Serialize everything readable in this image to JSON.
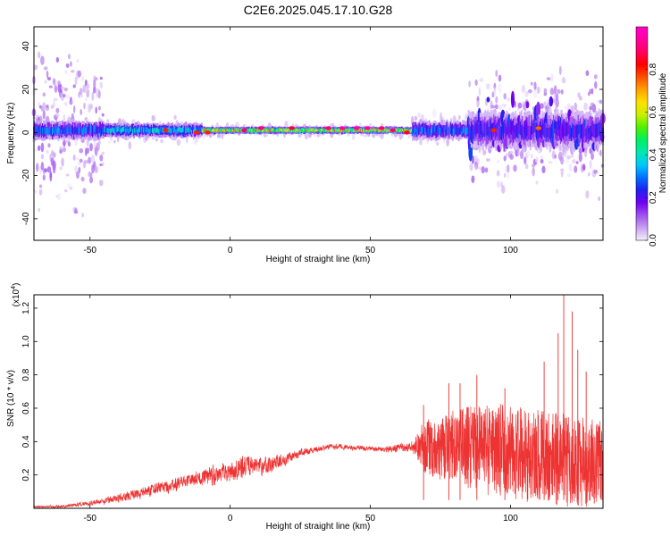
{
  "page": {
    "title": "C2E6.2025.045.17.10.G28"
  },
  "colorbar": {
    "label": "Normalized spectral amplitude",
    "ticks": [
      "0.0",
      "0.2",
      "0.4",
      "0.6",
      "0.8"
    ],
    "tick_values": [
      0.0,
      0.2,
      0.4,
      0.6,
      0.8
    ],
    "range": [
      0.0,
      1.0
    ],
    "colormap": [
      "#f4f0ff",
      "#c8a0f0",
      "#a050f0",
      "#7000f0",
      "#2020f0",
      "#0070ff",
      "#00c8ff",
      "#00e8b0",
      "#00f060",
      "#50f000",
      "#c8f000",
      "#ffe000",
      "#ffa000",
      "#ff5000",
      "#ff0000",
      "#ff0060",
      "#ff00a0",
      "#ff00c8"
    ]
  },
  "chart_data": [
    {
      "type": "heatmap",
      "title": "C2E6.2025.045.17.10.G28",
      "xlabel": "Height of straight line (km)",
      "ylabel": "Frequency (Hz)",
      "xlim": [
        -70,
        133
      ],
      "ylim": [
        -50,
        49
      ],
      "xticks": [
        -50,
        0,
        50,
        100
      ],
      "xtick_labels": [
        "-50",
        "0",
        "50",
        "100"
      ],
      "yticks": [
        -40,
        -20,
        0,
        20,
        40
      ],
      "ytick_labels": [
        "-40",
        "-20",
        "0",
        "20",
        "40"
      ],
      "band": {
        "center_hz": 1,
        "segments": [
          {
            "x_range": [
              -70,
              -45
            ],
            "halfwidth_hz": 4,
            "peak_amplitude": 0.4,
            "scatter_halfwidth_hz": 48
          },
          {
            "x_range": [
              -45,
              -10
            ],
            "halfwidth_hz": 3,
            "peak_amplitude": 0.5,
            "scatter_halfwidth_hz": 8
          },
          {
            "x_range": [
              -10,
              65
            ],
            "halfwidth_hz": 1.5,
            "peak_amplitude": 0.9,
            "scatter_halfwidth_hz": 3
          },
          {
            "x_range": [
              65,
              85
            ],
            "halfwidth_hz": 4,
            "peak_amplitude": 0.4,
            "scatter_halfwidth_hz": 10
          },
          {
            "x_range": [
              85,
              133
            ],
            "halfwidth_hz": 8,
            "peak_amplitude": 0.3,
            "scatter_halfwidth_hz": 35
          }
        ]
      },
      "hotspots": [
        {
          "x": -23,
          "y": 1,
          "value": 0.8
        },
        {
          "x": -12,
          "y": 0,
          "value": 0.8
        },
        {
          "x": -8,
          "y": 0,
          "value": 0.8
        },
        {
          "x": 5,
          "y": 1,
          "value": 0.9
        },
        {
          "x": 11,
          "y": 2,
          "value": 0.9
        },
        {
          "x": 22,
          "y": 2,
          "value": 0.85
        },
        {
          "x": 35,
          "y": 2,
          "value": 0.9
        },
        {
          "x": 40,
          "y": 2,
          "value": 0.95
        },
        {
          "x": 45,
          "y": 2,
          "value": 0.95
        },
        {
          "x": 49,
          "y": 2,
          "value": 0.95
        },
        {
          "x": 54,
          "y": 2,
          "value": 0.9
        },
        {
          "x": 58,
          "y": 1,
          "value": 0.9
        },
        {
          "x": 63,
          "y": 0,
          "value": 0.85
        },
        {
          "x": 94,
          "y": 1,
          "value": 0.8
        },
        {
          "x": 110,
          "y": 2,
          "value": 0.75
        }
      ],
      "colorbar": {
        "label": "Normalized spectral amplitude",
        "range": [
          0.0,
          1.0
        ]
      }
    },
    {
      "type": "line",
      "xlabel": "Height of straight line (km)",
      "ylabel": "SNR (10 * v/v)",
      "multiplier_label": "(x10",
      "multiplier_exponent": "4",
      "multiplier_close": ")",
      "xlim": [
        -70,
        133
      ],
      "ylim": [
        0.0,
        1.28
      ],
      "xticks": [
        -50,
        0,
        50,
        100
      ],
      "xtick_labels": [
        "-50",
        "0",
        "50",
        "100"
      ],
      "yticks": [
        0.2,
        0.4,
        0.6,
        0.8,
        1.0,
        1.2
      ],
      "ytick_labels": [
        "0.2",
        "0.4",
        "0.6",
        "0.8",
        "1.0",
        "1.2"
      ],
      "color": "#ee3333",
      "series": [
        {
          "envelope_x": [
            -70,
            -60,
            -50,
            -40,
            -30,
            -20,
            -15,
            -10,
            -5,
            0,
            5,
            10,
            15,
            20,
            25,
            30,
            35,
            40,
            45,
            50,
            55,
            60,
            65,
            68,
            72,
            75,
            80,
            85,
            90,
            95,
            100,
            105,
            110,
            115,
            120,
            125,
            130,
            133
          ],
          "envelope_mean": [
            0.01,
            0.01,
            0.03,
            0.06,
            0.1,
            0.14,
            0.17,
            0.19,
            0.2,
            0.22,
            0.25,
            0.25,
            0.27,
            0.3,
            0.33,
            0.35,
            0.37,
            0.37,
            0.36,
            0.36,
            0.35,
            0.36,
            0.37,
            0.37,
            0.37,
            0.37,
            0.37,
            0.36,
            0.36,
            0.35,
            0.34,
            0.32,
            0.31,
            0.3,
            0.29,
            0.28,
            0.27,
            0.27
          ],
          "envelope_spread": [
            0.005,
            0.01,
            0.015,
            0.03,
            0.04,
            0.05,
            0.05,
            0.06,
            0.07,
            0.07,
            0.08,
            0.07,
            0.06,
            0.04,
            0.03,
            0.02,
            0.02,
            0.02,
            0.02,
            0.02,
            0.02,
            0.03,
            0.04,
            0.15,
            0.18,
            0.2,
            0.22,
            0.25,
            0.28,
            0.28,
            0.28,
            0.28,
            0.28,
            0.28,
            0.28,
            0.27,
            0.26,
            0.25
          ],
          "peaks": [
            {
              "x": 69,
              "y": 0.62
            },
            {
              "x": 78,
              "y": 0.75
            },
            {
              "x": 82,
              "y": 0.75
            },
            {
              "x": 88,
              "y": 0.8
            },
            {
              "x": 98,
              "y": 0.72
            },
            {
              "x": 112,
              "y": 0.88
            },
            {
              "x": 117,
              "y": 1.05
            },
            {
              "x": 119,
              "y": 1.28
            },
            {
              "x": 122,
              "y": 1.18
            },
            {
              "x": 124,
              "y": 0.95
            },
            {
              "x": 127,
              "y": 0.82
            }
          ]
        }
      ]
    }
  ]
}
